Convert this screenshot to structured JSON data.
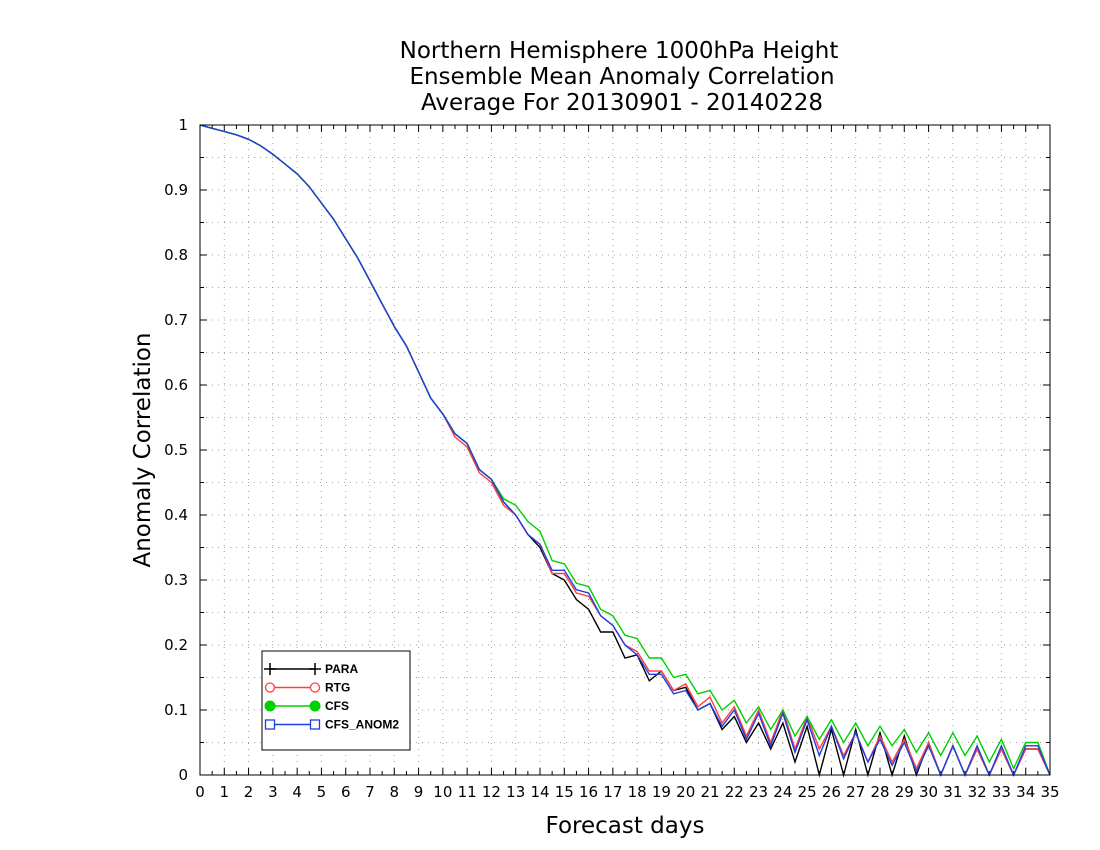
{
  "chart_data": {
    "type": "line",
    "title": [
      "Northern Hemisphere 1000hPa Height",
      "Ensemble Mean Anomaly Correlation",
      "Average For 20130901 - 20140228"
    ],
    "xlabel": "Forecast days",
    "ylabel": "Anomaly Correlation",
    "xlim": [
      0,
      35
    ],
    "ylim": [
      0,
      1
    ],
    "xticks": [
      0,
      1,
      2,
      3,
      4,
      5,
      6,
      7,
      8,
      9,
      10,
      11,
      12,
      13,
      14,
      15,
      16,
      17,
      18,
      19,
      20,
      21,
      22,
      23,
      24,
      25,
      26,
      27,
      28,
      29,
      30,
      31,
      32,
      33,
      34,
      35
    ],
    "yticks": [
      0,
      0.1,
      0.2,
      0.3,
      0.4,
      0.5,
      0.6,
      0.7,
      0.8,
      0.9,
      1
    ],
    "ytick_labels": [
      "0",
      "0.1",
      "0.2",
      "0.3",
      "0.4",
      "0.5",
      "0.6",
      "0.7",
      "0.8",
      "0.9",
      "1"
    ],
    "grid": true,
    "legend_position": "bottom-left",
    "x": [
      0,
      0.5,
      1,
      1.5,
      2,
      2.5,
      3,
      3.5,
      4,
      4.5,
      5,
      5.5,
      6,
      6.5,
      7,
      7.5,
      8,
      8.5,
      9,
      9.5,
      10,
      10.5,
      11,
      11.5,
      12,
      12.5,
      13,
      13.5,
      14,
      14.5,
      15,
      15.5,
      16,
      16.5,
      17,
      17.5,
      18,
      18.5,
      19,
      19.5,
      20,
      20.5,
      21,
      21.5,
      22,
      22.5,
      23,
      23.5,
      24,
      24.5,
      25,
      25.5,
      26,
      26.5,
      27,
      27.5,
      28,
      28.5,
      29,
      29.5,
      30,
      30.5,
      31,
      31.5,
      32,
      32.5,
      33,
      33.5,
      34,
      34.5,
      35
    ],
    "series": [
      {
        "name": "PARA",
        "color": "#000000",
        "marker": "plus",
        "values": [
          1.0,
          0.995,
          0.99,
          0.985,
          0.978,
          0.968,
          0.955,
          0.94,
          0.925,
          0.905,
          0.88,
          0.855,
          0.825,
          0.795,
          0.76,
          0.725,
          0.69,
          0.66,
          0.62,
          0.58,
          0.555,
          0.525,
          0.51,
          0.47,
          0.455,
          0.42,
          0.4,
          0.37,
          0.35,
          0.31,
          0.3,
          0.27,
          0.255,
          0.22,
          0.22,
          0.18,
          0.185,
          0.145,
          0.16,
          0.13,
          0.135,
          0.1,
          0.11,
          0.07,
          0.09,
          0.05,
          0.08,
          0.04,
          0.08,
          0.02,
          0.075,
          0.0,
          0.07,
          0.0,
          0.07,
          0.0,
          0.065,
          0.0,
          0.06,
          0.0,
          0.05,
          0.0,
          0.045,
          0.0,
          0.04,
          0.0,
          0.04,
          0.0,
          0.04,
          0.04,
          0.0
        ]
      },
      {
        "name": "RTG",
        "color": "#ff4040",
        "marker": "circle-open",
        "values": [
          1.0,
          0.995,
          0.99,
          0.985,
          0.978,
          0.968,
          0.955,
          0.94,
          0.925,
          0.905,
          0.88,
          0.855,
          0.825,
          0.795,
          0.76,
          0.725,
          0.69,
          0.66,
          0.62,
          0.58,
          0.555,
          0.52,
          0.505,
          0.465,
          0.45,
          0.415,
          0.4,
          0.37,
          0.355,
          0.31,
          0.31,
          0.28,
          0.275,
          0.245,
          0.23,
          0.2,
          0.19,
          0.16,
          0.16,
          0.13,
          0.14,
          0.105,
          0.12,
          0.08,
          0.105,
          0.06,
          0.1,
          0.05,
          0.1,
          0.04,
          0.09,
          0.04,
          0.075,
          0.03,
          0.065,
          0.02,
          0.06,
          0.02,
          0.055,
          0.01,
          0.05,
          0.0,
          0.045,
          0.0,
          0.04,
          0.0,
          0.04,
          0.0,
          0.04,
          0.04,
          0.0
        ]
      },
      {
        "name": "CFS",
        "color": "#00d000",
        "marker": "circle-filled",
        "values": [
          1.0,
          0.995,
          0.99,
          0.985,
          0.978,
          0.968,
          0.955,
          0.94,
          0.925,
          0.905,
          0.88,
          0.855,
          0.825,
          0.795,
          0.76,
          0.725,
          0.69,
          0.66,
          0.62,
          0.58,
          0.555,
          0.525,
          0.51,
          0.47,
          0.455,
          0.425,
          0.415,
          0.39,
          0.375,
          0.33,
          0.325,
          0.295,
          0.29,
          0.255,
          0.245,
          0.215,
          0.21,
          0.18,
          0.18,
          0.15,
          0.155,
          0.125,
          0.13,
          0.1,
          0.115,
          0.08,
          0.105,
          0.07,
          0.1,
          0.06,
          0.09,
          0.055,
          0.085,
          0.05,
          0.08,
          0.045,
          0.075,
          0.045,
          0.07,
          0.035,
          0.065,
          0.03,
          0.065,
          0.03,
          0.06,
          0.02,
          0.055,
          0.01,
          0.05,
          0.05,
          0.0
        ]
      },
      {
        "name": "CFS_ANOM2",
        "color": "#1f3fe0",
        "marker": "square-open",
        "values": [
          1.0,
          0.995,
          0.99,
          0.985,
          0.978,
          0.968,
          0.955,
          0.94,
          0.925,
          0.905,
          0.88,
          0.855,
          0.825,
          0.795,
          0.76,
          0.725,
          0.69,
          0.66,
          0.62,
          0.58,
          0.555,
          0.525,
          0.51,
          0.47,
          0.455,
          0.42,
          0.4,
          0.37,
          0.355,
          0.315,
          0.315,
          0.285,
          0.28,
          0.245,
          0.23,
          0.2,
          0.185,
          0.155,
          0.155,
          0.125,
          0.13,
          0.1,
          0.11,
          0.075,
          0.1,
          0.055,
          0.095,
          0.045,
          0.095,
          0.035,
          0.085,
          0.03,
          0.075,
          0.025,
          0.065,
          0.02,
          0.055,
          0.015,
          0.05,
          0.005,
          0.045,
          0.0,
          0.045,
          0.0,
          0.045,
          0.0,
          0.045,
          0.0,
          0.045,
          0.045,
          0.0
        ]
      }
    ]
  }
}
